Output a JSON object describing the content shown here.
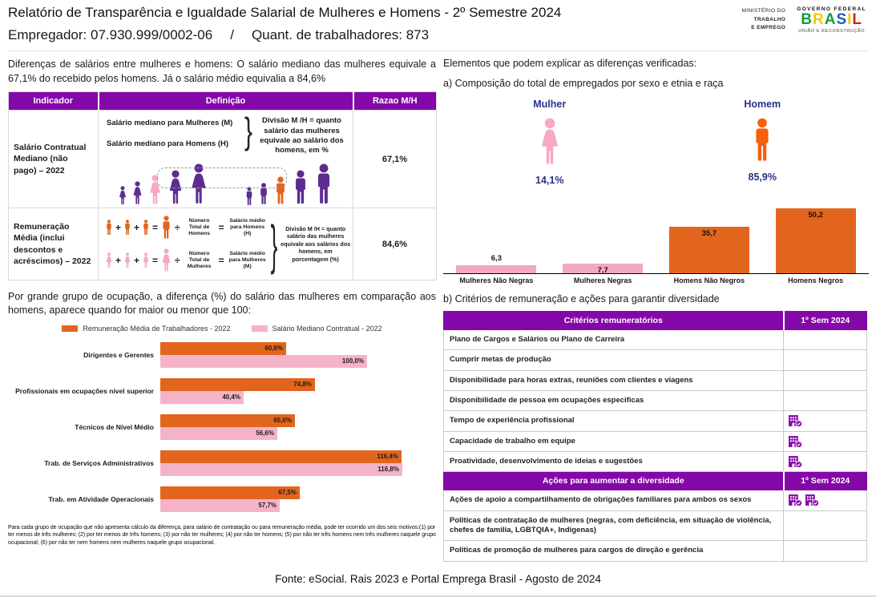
{
  "header": {
    "title": "Relatório de Transparência e Igualdade Salarial de Mulheres e Homens - 2º Semestre 2024",
    "employer": "Empregador: 07.930.999/0002-06",
    "separator": "/",
    "workers": "Quant. de trabalhadores: 873",
    "logo": {
      "ministry_lines": [
        "MINISTÉRIO DO",
        "TRABALHO",
        "E EMPREGO"
      ],
      "gov_label": "GOVERNO FEDERAL",
      "brand": "BRASIL",
      "brand_colors": [
        "#169B3E",
        "#F7C800",
        "#169B3E",
        "#1B5BC4",
        "#F7C800",
        "#C52422"
      ],
      "tagline": "UNIÃO E RECONSTRUÇÃO"
    }
  },
  "salary_differences": {
    "intro": "Diferenças de salários entre mulheres e homens: O salário mediano das mulheres equivale a 67,1% do recebido pelos homens. Já o salário médio equivalia a 84,6%",
    "table": {
      "headers": [
        "Indicador",
        "Definição",
        "Razao M/H"
      ],
      "rows": [
        {
          "indicator": "Salário Contratual Mediano (não pago) – 2022",
          "def_line1": "Salário mediano para Mulheres (M)",
          "def_line2": "Salário mediano para Homens (H)",
          "def_note": "Divisão M /H = quanto salário das mulheres equivale ao salário dos homens, em %",
          "ratio": "67,1%",
          "women_figures": [
            "#5C2D91",
            "#5C2D91",
            "#F7A8C4",
            "#5C2D91",
            "#5C2D91"
          ],
          "men_figures": [
            "#5C2D91",
            "#5C2D91",
            "#E2651D",
            "#5C2D91",
            "#5C2D91"
          ]
        },
        {
          "indicator": "Remuneração Média (inclui descontos e acréscimos) – 2022",
          "men_color": "#E2651D",
          "women_color": "#F7A8C4",
          "men_total_label": "Número Total de Homens",
          "men_salary_label": "Salário médio para Homens (H)",
          "women_total_label": "Número Total de Mulheres",
          "women_salary_label": "Salário médio para Mulheres (M)",
          "def_note": "Divisão M /H = quanto salário das mulheres equivale aos salários dos homens, em porcentagem (%)",
          "ratio": "84,6%"
        }
      ]
    },
    "occupation_heading": "Por grande grupo de ocupação, a diferença (%) do salário das mulheres em comparação aos homens, aparece quando for maior ou menor que 100:",
    "footnote": "Para cada grupo de ocupação que não apresenta cálculo da diferença, para salário de contratação ou para remuneração média, pode ter ocorrido um dos seis motivos:(1) por ter menos de três mulheres; (2) por ter menos de três homens; (3) por não ter mulheres; (4) por não ter homens; (5) por não ter três homens nem três mulheres naquele grupo ocupacional; (6) por não ter nem homens nem mulheres naquele grupo ocupacional."
  },
  "explanation": {
    "heading": "Elementos que podem explicar as diferenças verificadas:",
    "sub_a": "a) Composição do total de empregados por sexo e etnia e raça",
    "gender_split": {
      "female_label": "Mulher",
      "female_value": "14,1%",
      "female_color": "#F7A8C4",
      "male_label": "Homem",
      "male_value": "85,9%",
      "male_color": "#F4600C"
    },
    "sub_b": "b) Critérios de remuneração e ações para garantir diversidade",
    "criteria_table": {
      "header": "Critérios remuneratórios",
      "period": "1º Sem 2024",
      "rows": [
        {
          "label": "Plano de Cargos e Salários ou Plano de Carreira",
          "checks": 0
        },
        {
          "label": "Cumprir metas de produção",
          "checks": 0
        },
        {
          "label": "Disponibilidade para horas extras, reuniões com clientes e viagens",
          "checks": 0
        },
        {
          "label": "Disponibilidade de pessoa em ocupações especificas",
          "checks": 0
        },
        {
          "label": "Tempo de experiência profissional",
          "checks": 1
        },
        {
          "label": "Capacidade de trabalho em equipe",
          "checks": 1
        },
        {
          "label": "Proatividade, desenvolvimento de ideias e sugestões",
          "checks": 1
        }
      ]
    },
    "actions_table": {
      "header": "Ações para aumentar a diversidade",
      "period": "1º Sem 2024",
      "rows": [
        {
          "label": "Ações de apoio a compartilhamento de obrigações familiares para ambos os sexos",
          "checks": 2
        },
        {
          "label": "Politicas de contratação de mulheres (negras, com deficiência, em situação de violência, chefes de familia, LGBTQIA+, Indigenas)",
          "checks": 0
        },
        {
          "label": "Politicas de promoção de mulheres para cargos de direção e gerência",
          "checks": 0
        }
      ]
    }
  },
  "footer": "Fonte: eSocial. Rais 2023 e Portal Emprega Brasil - Agosto de 2024",
  "symbols": {
    "brace": "}",
    "plus": "+",
    "equals": "=",
    "divide": "÷"
  },
  "colors": {
    "header_purple": "#8408A8",
    "figure_purple": "#5C2D91",
    "pink": "#F7A8C4",
    "orange": "#E2651D",
    "navy": "#2B3087"
  },
  "chart_data": [
    {
      "id": "composition",
      "type": "bar",
      "title": "Composição do total de empregados por sexo e etnia e raça",
      "categories": [
        "Mulheres Não Negras",
        "Mulheres Negras",
        "Homens Não Negros",
        "Homens Negros"
      ],
      "values": [
        6.3,
        7.7,
        35.7,
        50.2
      ],
      "value_labels": [
        "6,3",
        "7,7",
        "35,7",
        "50,2"
      ],
      "bar_colors": [
        "#F2A9C0",
        "#F2A9C0",
        "#E2651D",
        "#E2651D"
      ],
      "ylim": [
        0,
        55
      ],
      "grid": false,
      "legend_position": "none"
    },
    {
      "id": "occupation",
      "type": "bar-horizontal-grouped",
      "title": "Diferença (%) do salário das mulheres em comparação aos homens por grande grupo de ocupação",
      "categories": [
        "Dirigentes e Gerentes",
        "Profissionais em ocupações nível superior",
        "Técnicos de Nível Médio",
        "Trab. de Serviços Administrativos",
        "Trab. em Atividade Operacionais"
      ],
      "series": [
        {
          "name": "Remuneração Média de Trabalhadores - 2022",
          "color": "#E2651D",
          "values": [
            60.6,
            74.8,
            65.0,
            116.4,
            67.5
          ],
          "labels": [
            "60,6%",
            "74,8%",
            "65,0%",
            "116,4%",
            "67,5%"
          ]
        },
        {
          "name": "Salário Mediano Contratual - 2022",
          "color": "#F5B3C8",
          "values": [
            100.0,
            40.4,
            56.6,
            116.8,
            57.7
          ],
          "labels": [
            "100,0%",
            "40,4%",
            "56,6%",
            "116,8%",
            "57,7%"
          ]
        }
      ],
      "xlim": [
        0,
        120
      ],
      "grid": false,
      "legend_position": "top"
    }
  ]
}
